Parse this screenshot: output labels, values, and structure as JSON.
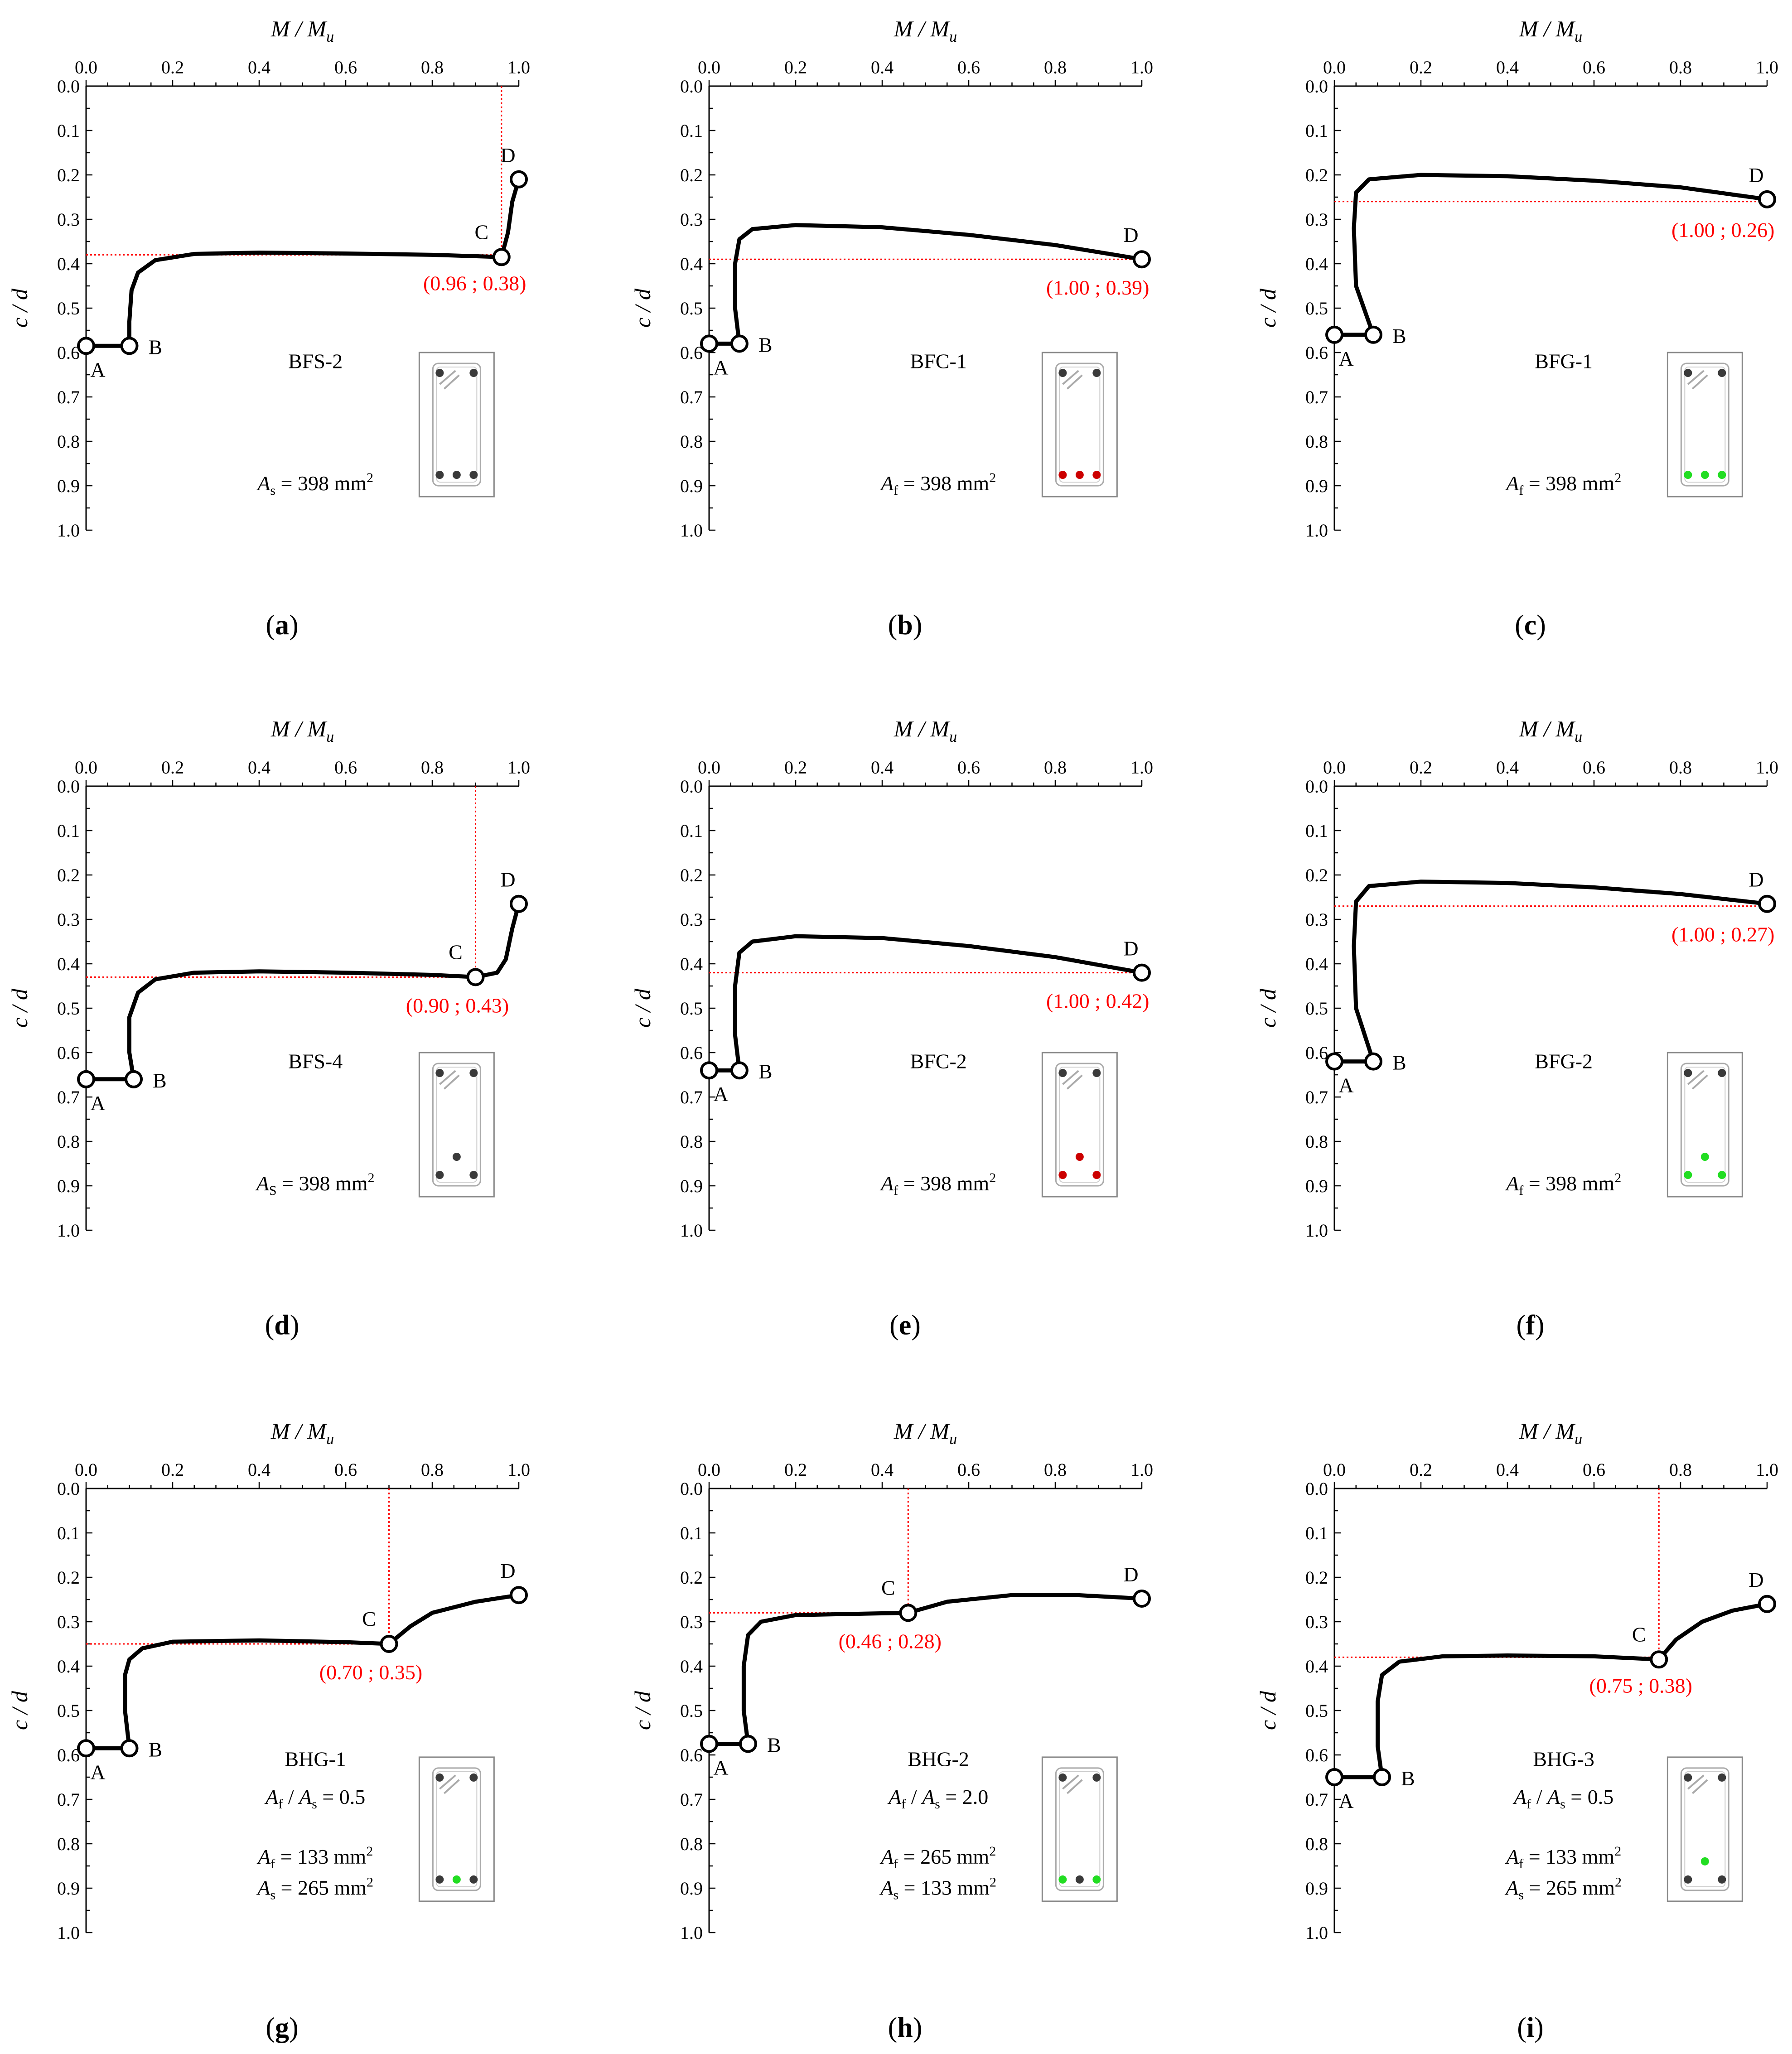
{
  "colors": {
    "curve": "#000000",
    "guide": "#ff0000",
    "steel": "#3a3a3a",
    "cfrp": "#cc0000",
    "gfrp": "#22dd22",
    "frame": "#888888"
  },
  "chart_data": [
    {
      "panel": "a",
      "type": "line",
      "title": "BFS-2",
      "top_xlabel": {
        "main": "M / M",
        "sub": "u"
      },
      "ylabel": "c / d",
      "xlim": [
        0,
        1
      ],
      "ylim": [
        0,
        1
      ],
      "y_inverted": true,
      "x_ticks": [
        "0.0",
        "0.2",
        "0.4",
        "0.6",
        "0.8",
        "1.0"
      ],
      "y_ticks": [
        "0.0",
        "0.1",
        "0.2",
        "0.3",
        "0.4",
        "0.5",
        "0.6",
        "0.7",
        "0.8",
        "0.9",
        "1.0"
      ],
      "curve": [
        [
          0,
          0.585
        ],
        [
          0.1,
          0.585
        ],
        [
          0.1,
          0.53
        ],
        [
          0.105,
          0.46
        ],
        [
          0.12,
          0.42
        ],
        [
          0.16,
          0.392
        ],
        [
          0.25,
          0.378
        ],
        [
          0.4,
          0.375
        ],
        [
          0.6,
          0.377
        ],
        [
          0.8,
          0.38
        ],
        [
          0.96,
          0.385
        ],
        [
          0.975,
          0.33
        ],
        [
          0.985,
          0.26
        ],
        [
          1.0,
          0.21
        ]
      ],
      "key_points": [
        {
          "label": "A",
          "x": 0,
          "y": 0.585
        },
        {
          "label": "B",
          "x": 0.1,
          "y": 0.585
        },
        {
          "label": "C",
          "x": 0.96,
          "y": 0.385
        },
        {
          "label": "D",
          "x": 1.0,
          "y": 0.21
        }
      ],
      "highlight": {
        "x": 0.96,
        "y": 0.38,
        "label": "(0.96 ; 0.38)"
      },
      "area_label": [
        {
          "var": "A",
          "sub": "s",
          "text": " = 398 mm",
          "sup": "2"
        }
      ],
      "ratio_label": null,
      "section": {
        "bars": [
          "steel",
          "steel",
          "steel"
        ],
        "layout": "bottom-3"
      },
      "caption": "a"
    },
    {
      "panel": "b",
      "type": "line",
      "title": "BFC-1",
      "top_xlabel": {
        "main": "M / M",
        "sub": "u"
      },
      "ylabel": "c / d",
      "xlim": [
        0,
        1
      ],
      "ylim": [
        0,
        1
      ],
      "y_inverted": true,
      "x_ticks": [
        "0.0",
        "0.2",
        "0.4",
        "0.6",
        "0.8",
        "1.0"
      ],
      "y_ticks": [
        "0.0",
        "0.1",
        "0.2",
        "0.3",
        "0.4",
        "0.5",
        "0.6",
        "0.7",
        "0.8",
        "0.9",
        "1.0"
      ],
      "curve": [
        [
          0,
          0.58
        ],
        [
          0.07,
          0.58
        ],
        [
          0.06,
          0.5
        ],
        [
          0.06,
          0.4
        ],
        [
          0.07,
          0.345
        ],
        [
          0.1,
          0.322
        ],
        [
          0.2,
          0.313
        ],
        [
          0.4,
          0.318
        ],
        [
          0.6,
          0.335
        ],
        [
          0.8,
          0.358
        ],
        [
          1.0,
          0.39
        ]
      ],
      "key_points": [
        {
          "label": "A",
          "x": 0,
          "y": 0.58
        },
        {
          "label": "B",
          "x": 0.07,
          "y": 0.58
        },
        {
          "label": "D",
          "x": 1.0,
          "y": 0.39
        }
      ],
      "highlight": {
        "x": 1.0,
        "y": 0.39,
        "label": "(1.00 ; 0.39)"
      },
      "area_label": [
        {
          "var": "A",
          "sub": "f",
          "text": " = 398 mm",
          "sup": "2"
        }
      ],
      "ratio_label": null,
      "section": {
        "bars": [
          "cfrp",
          "cfrp",
          "cfrp"
        ],
        "layout": "bottom-3"
      },
      "caption": "b"
    },
    {
      "panel": "c",
      "type": "line",
      "title": "BFG-1",
      "top_xlabel": {
        "main": "M / M",
        "sub": "u"
      },
      "ylabel": "c / d",
      "xlim": [
        0,
        1
      ],
      "ylim": [
        0,
        1
      ],
      "y_inverted": true,
      "x_ticks": [
        "0.0",
        "0.2",
        "0.4",
        "0.6",
        "0.8",
        "1.0"
      ],
      "y_ticks": [
        "0.0",
        "0.1",
        "0.2",
        "0.3",
        "0.4",
        "0.5",
        "0.6",
        "0.7",
        "0.8",
        "0.9",
        "1.0"
      ],
      "curve": [
        [
          0,
          0.56
        ],
        [
          0.09,
          0.56
        ],
        [
          0.05,
          0.45
        ],
        [
          0.045,
          0.32
        ],
        [
          0.05,
          0.24
        ],
        [
          0.08,
          0.21
        ],
        [
          0.2,
          0.2
        ],
        [
          0.4,
          0.203
        ],
        [
          0.6,
          0.213
        ],
        [
          0.8,
          0.228
        ],
        [
          1.0,
          0.255
        ]
      ],
      "key_points": [
        {
          "label": "A",
          "x": 0,
          "y": 0.56
        },
        {
          "label": "B",
          "x": 0.09,
          "y": 0.56
        },
        {
          "label": "D",
          "x": 1.0,
          "y": 0.255
        }
      ],
      "highlight": {
        "x": 1.0,
        "y": 0.26,
        "label": "(1.00 ; 0.26)"
      },
      "area_label": [
        {
          "var": "A",
          "sub": "f",
          "text": " = 398 mm",
          "sup": "2"
        }
      ],
      "ratio_label": null,
      "section": {
        "bars": [
          "gfrp",
          "gfrp",
          "gfrp"
        ],
        "layout": "bottom-3"
      },
      "caption": "c"
    },
    {
      "panel": "d",
      "type": "line",
      "title": "BFS-4",
      "top_xlabel": {
        "main": "M / M",
        "sub": "u"
      },
      "ylabel": "c / d",
      "xlim": [
        0,
        1
      ],
      "ylim": [
        0,
        1
      ],
      "y_inverted": true,
      "x_ticks": [
        "0.0",
        "0.2",
        "0.4",
        "0.6",
        "0.8",
        "1.0"
      ],
      "y_ticks": [
        "0.0",
        "0.1",
        "0.2",
        "0.3",
        "0.4",
        "0.5",
        "0.6",
        "0.7",
        "0.8",
        "0.9",
        "1.0"
      ],
      "curve": [
        [
          0,
          0.66
        ],
        [
          0.11,
          0.66
        ],
        [
          0.1,
          0.6
        ],
        [
          0.1,
          0.52
        ],
        [
          0.12,
          0.465
        ],
        [
          0.16,
          0.435
        ],
        [
          0.25,
          0.42
        ],
        [
          0.4,
          0.417
        ],
        [
          0.6,
          0.42
        ],
        [
          0.8,
          0.425
        ],
        [
          0.9,
          0.43
        ],
        [
          0.95,
          0.42
        ],
        [
          0.97,
          0.39
        ],
        [
          0.985,
          0.32
        ],
        [
          1.0,
          0.265
        ]
      ],
      "key_points": [
        {
          "label": "A",
          "x": 0,
          "y": 0.66
        },
        {
          "label": "B",
          "x": 0.11,
          "y": 0.66
        },
        {
          "label": "C",
          "x": 0.9,
          "y": 0.43
        },
        {
          "label": "D",
          "x": 1.0,
          "y": 0.265
        }
      ],
      "highlight": {
        "x": 0.9,
        "y": 0.43,
        "label": "(0.90 ; 0.43)"
      },
      "area_label": [
        {
          "var": "A",
          "sub": "S",
          "text": " = 398 mm",
          "sup": "2"
        }
      ],
      "ratio_label": null,
      "section": {
        "bars": [
          "steel",
          "steel",
          "steel"
        ],
        "layout": "triangle"
      },
      "caption": "d"
    },
    {
      "panel": "e",
      "type": "line",
      "title": "BFC-2",
      "top_xlabel": {
        "main": "M / M",
        "sub": "u"
      },
      "ylabel": "c / d",
      "xlim": [
        0,
        1
      ],
      "ylim": [
        0,
        1
      ],
      "y_inverted": true,
      "x_ticks": [
        "0.0",
        "0.2",
        "0.4",
        "0.6",
        "0.8",
        "1.0"
      ],
      "y_ticks": [
        "0.0",
        "0.1",
        "0.2",
        "0.3",
        "0.4",
        "0.5",
        "0.6",
        "0.7",
        "0.8",
        "0.9",
        "1.0"
      ],
      "curve": [
        [
          0,
          0.64
        ],
        [
          0.07,
          0.64
        ],
        [
          0.06,
          0.56
        ],
        [
          0.06,
          0.45
        ],
        [
          0.07,
          0.375
        ],
        [
          0.1,
          0.35
        ],
        [
          0.2,
          0.338
        ],
        [
          0.4,
          0.342
        ],
        [
          0.6,
          0.36
        ],
        [
          0.8,
          0.385
        ],
        [
          1.0,
          0.42
        ]
      ],
      "key_points": [
        {
          "label": "A",
          "x": 0,
          "y": 0.64
        },
        {
          "label": "B",
          "x": 0.07,
          "y": 0.64
        },
        {
          "label": "D",
          "x": 1.0,
          "y": 0.42
        }
      ],
      "highlight": {
        "x": 1.0,
        "y": 0.42,
        "label": "(1.00 ; 0.42)"
      },
      "area_label": [
        {
          "var": "A",
          "sub": "f",
          "text": " = 398 mm",
          "sup": "2"
        }
      ],
      "ratio_label": null,
      "section": {
        "bars": [
          "cfrp",
          "cfrp",
          "cfrp"
        ],
        "layout": "triangle"
      },
      "caption": "e"
    },
    {
      "panel": "f",
      "type": "line",
      "title": "BFG-2",
      "top_xlabel": {
        "main": "M / M",
        "sub": "u"
      },
      "ylabel": "c / d",
      "xlim": [
        0,
        1
      ],
      "ylim": [
        0,
        1
      ],
      "y_inverted": true,
      "x_ticks": [
        "0.0",
        "0.2",
        "0.4",
        "0.6",
        "0.8",
        "1.0"
      ],
      "y_ticks": [
        "0.0",
        "0.1",
        "0.2",
        "0.3",
        "0.4",
        "0.5",
        "0.6",
        "0.7",
        "0.8",
        "0.9",
        "1.0"
      ],
      "curve": [
        [
          0,
          0.62
        ],
        [
          0.09,
          0.62
        ],
        [
          0.05,
          0.5
        ],
        [
          0.045,
          0.36
        ],
        [
          0.05,
          0.26
        ],
        [
          0.08,
          0.225
        ],
        [
          0.2,
          0.215
        ],
        [
          0.4,
          0.218
        ],
        [
          0.6,
          0.228
        ],
        [
          0.8,
          0.243
        ],
        [
          1.0,
          0.265
        ]
      ],
      "key_points": [
        {
          "label": "A",
          "x": 0,
          "y": 0.62
        },
        {
          "label": "B",
          "x": 0.09,
          "y": 0.62
        },
        {
          "label": "D",
          "x": 1.0,
          "y": 0.265
        }
      ],
      "highlight": {
        "x": 1.0,
        "y": 0.27,
        "label": "(1.00 ; 0.27)"
      },
      "area_label": [
        {
          "var": "A",
          "sub": "f",
          "text": " = 398 mm",
          "sup": "2"
        }
      ],
      "ratio_label": null,
      "section": {
        "bars": [
          "gfrp",
          "gfrp",
          "gfrp"
        ],
        "layout": "triangle"
      },
      "caption": "f"
    },
    {
      "panel": "g",
      "type": "line",
      "title": "BHG-1",
      "top_xlabel": {
        "main": "M / M",
        "sub": "u"
      },
      "ylabel": "c / d",
      "xlim": [
        0,
        1
      ],
      "ylim": [
        0,
        1
      ],
      "y_inverted": true,
      "x_ticks": [
        "0.0",
        "0.2",
        "0.4",
        "0.6",
        "0.8",
        "1.0"
      ],
      "y_ticks": [
        "0.0",
        "0.1",
        "0.2",
        "0.3",
        "0.4",
        "0.5",
        "0.6",
        "0.7",
        "0.8",
        "0.9",
        "1.0"
      ],
      "curve": [
        [
          0,
          0.585
        ],
        [
          0.1,
          0.585
        ],
        [
          0.09,
          0.5
        ],
        [
          0.09,
          0.42
        ],
        [
          0.1,
          0.385
        ],
        [
          0.13,
          0.36
        ],
        [
          0.2,
          0.345
        ],
        [
          0.4,
          0.342
        ],
        [
          0.6,
          0.346
        ],
        [
          0.7,
          0.35
        ],
        [
          0.75,
          0.31
        ],
        [
          0.8,
          0.28
        ],
        [
          0.9,
          0.255
        ],
        [
          1.0,
          0.24
        ]
      ],
      "key_points": [
        {
          "label": "A",
          "x": 0,
          "y": 0.585
        },
        {
          "label": "B",
          "x": 0.1,
          "y": 0.585
        },
        {
          "label": "C",
          "x": 0.7,
          "y": 0.35
        },
        {
          "label": "D",
          "x": 1.0,
          "y": 0.24
        }
      ],
      "highlight": {
        "x": 0.7,
        "y": 0.35,
        "label": "(0.70 ; 0.35)"
      },
      "area_label": [
        {
          "var": "A",
          "sub": "f",
          "text": " = 133 mm",
          "sup": "2"
        },
        {
          "var": "A",
          "sub": "s",
          "text": " = 265 mm",
          "sup": "2"
        }
      ],
      "ratio_label": {
        "v1": "A",
        "s1": "f",
        "v2": "A",
        "s2": "s",
        "value": " = 0.5"
      },
      "section": {
        "bars": [
          "steel",
          "gfrp",
          "steel"
        ],
        "layout": "bottom-3"
      },
      "caption": "g"
    },
    {
      "panel": "h",
      "type": "line",
      "title": "BHG-2",
      "top_xlabel": {
        "main": "M / M",
        "sub": "u"
      },
      "ylabel": "c / d",
      "xlim": [
        0,
        1
      ],
      "ylim": [
        0,
        1
      ],
      "y_inverted": true,
      "x_ticks": [
        "0.0",
        "0.2",
        "0.4",
        "0.6",
        "0.8",
        "1.0"
      ],
      "y_ticks": [
        "0.0",
        "0.1",
        "0.2",
        "0.3",
        "0.4",
        "0.5",
        "0.6",
        "0.7",
        "0.8",
        "0.9",
        "1.0"
      ],
      "curve": [
        [
          0,
          0.575
        ],
        [
          0.09,
          0.575
        ],
        [
          0.08,
          0.5
        ],
        [
          0.08,
          0.4
        ],
        [
          0.09,
          0.33
        ],
        [
          0.12,
          0.3
        ],
        [
          0.2,
          0.285
        ],
        [
          0.35,
          0.282
        ],
        [
          0.46,
          0.28
        ],
        [
          0.55,
          0.255
        ],
        [
          0.7,
          0.24
        ],
        [
          0.85,
          0.24
        ],
        [
          1.0,
          0.248
        ]
      ],
      "key_points": [
        {
          "label": "A",
          "x": 0,
          "y": 0.575
        },
        {
          "label": "B",
          "x": 0.09,
          "y": 0.575
        },
        {
          "label": "C",
          "x": 0.46,
          "y": 0.28
        },
        {
          "label": "D",
          "x": 1.0,
          "y": 0.248
        }
      ],
      "highlight": {
        "x": 0.46,
        "y": 0.28,
        "label": "(0.46 ; 0.28)"
      },
      "area_label": [
        {
          "var": "A",
          "sub": "f",
          "text": " = 265 mm",
          "sup": "2"
        },
        {
          "var": "A",
          "sub": "s",
          "text": " = 133 mm",
          "sup": "2"
        }
      ],
      "ratio_label": {
        "v1": "A",
        "s1": "f",
        "v2": "A",
        "s2": "s",
        "value": " = 2.0"
      },
      "section": {
        "bars": [
          "gfrp",
          "steel",
          "gfrp"
        ],
        "layout": "bottom-3"
      },
      "caption": "h"
    },
    {
      "panel": "i",
      "type": "line",
      "title": "BHG-3",
      "top_xlabel": {
        "main": "M / M",
        "sub": "u"
      },
      "ylabel": "c / d",
      "xlim": [
        0,
        1
      ],
      "ylim": [
        0,
        1
      ],
      "y_inverted": true,
      "x_ticks": [
        "0.0",
        "0.2",
        "0.4",
        "0.6",
        "0.8",
        "1.0"
      ],
      "y_ticks": [
        "0.0",
        "0.1",
        "0.2",
        "0.3",
        "0.4",
        "0.5",
        "0.6",
        "0.7",
        "0.8",
        "0.9",
        "1.0"
      ],
      "curve": [
        [
          0,
          0.65
        ],
        [
          0.11,
          0.65
        ],
        [
          0.1,
          0.58
        ],
        [
          0.1,
          0.48
        ],
        [
          0.11,
          0.42
        ],
        [
          0.15,
          0.39
        ],
        [
          0.25,
          0.378
        ],
        [
          0.4,
          0.376
        ],
        [
          0.6,
          0.378
        ],
        [
          0.75,
          0.385
        ],
        [
          0.79,
          0.34
        ],
        [
          0.85,
          0.3
        ],
        [
          0.92,
          0.275
        ],
        [
          1.0,
          0.26
        ]
      ],
      "key_points": [
        {
          "label": "A",
          "x": 0,
          "y": 0.65
        },
        {
          "label": "B",
          "x": 0.11,
          "y": 0.65
        },
        {
          "label": "C",
          "x": 0.75,
          "y": 0.385
        },
        {
          "label": "D",
          "x": 1.0,
          "y": 0.26
        }
      ],
      "highlight": {
        "x": 0.75,
        "y": 0.38,
        "label": "(0.75 ; 0.38)"
      },
      "area_label": [
        {
          "var": "A",
          "sub": "f",
          "text": " = 133 mm",
          "sup": "2"
        },
        {
          "var": "A",
          "sub": "s",
          "text": " = 265 mm",
          "sup": "2"
        }
      ],
      "ratio_label": {
        "v1": "A",
        "s1": "f",
        "v2": "A",
        "s2": "s",
        "value": " = 0.5"
      },
      "section": {
        "bars": [
          "steel",
          "gfrp",
          "steel"
        ],
        "layout": "triangle"
      },
      "caption": "i"
    }
  ]
}
